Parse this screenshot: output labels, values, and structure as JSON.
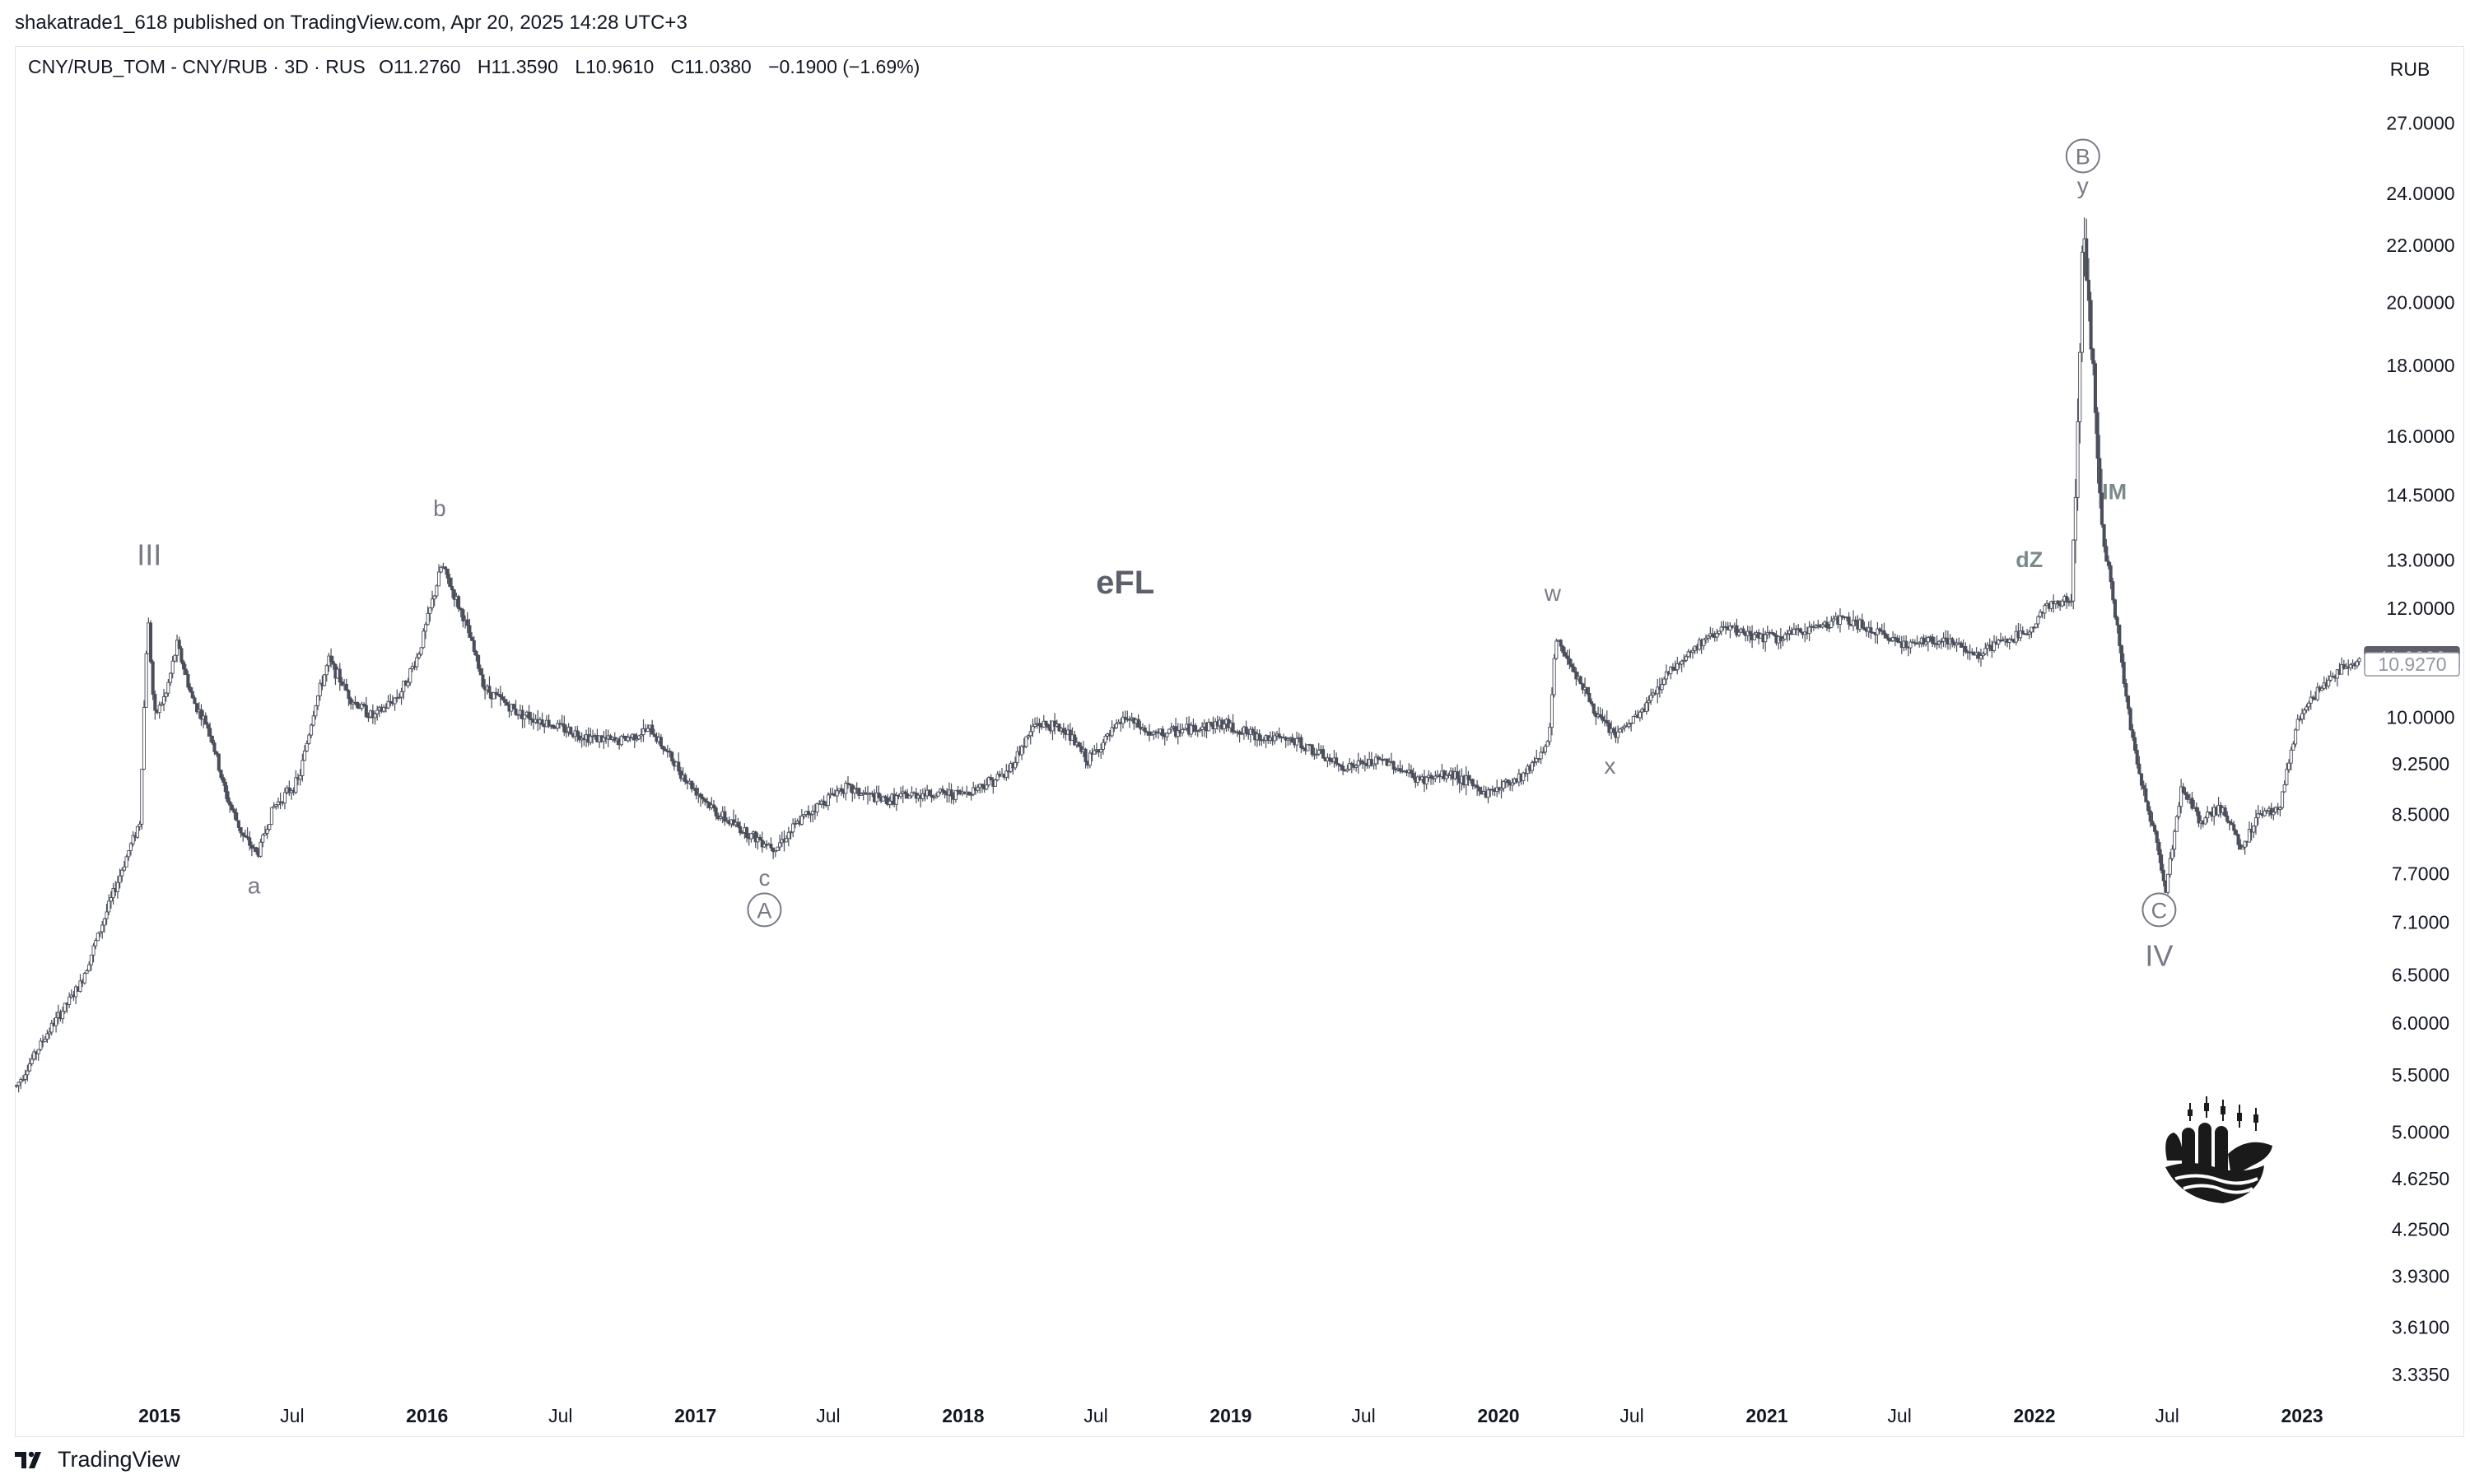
{
  "publish_line": "shakatrade1_618 published on TradingView.com, Apr 20, 2025 14:28 UTC+3",
  "legend": {
    "symbol": "CNY/RUB_TOM - CNY/RUB · 3D · RUS",
    "open": "O11.2760",
    "high": "H11.3590",
    "low": "L10.9610",
    "close": "C11.0380",
    "change": "−0.1900 (−1.69%)"
  },
  "currency": "RUB",
  "footer": {
    "logo_text": "TradingView"
  },
  "icons": [
    "tradingview-logo-icon",
    "shaka-hand-logo-icon"
  ],
  "colors": {
    "candle": "#4a4e5a",
    "label": "#787b86",
    "price_badge_bg": "#5d606b"
  },
  "chart_data": {
    "type": "line",
    "y_scale": "log",
    "ylim": [
      3.2,
      28.5
    ],
    "xlim": [
      "2014-06-20",
      "2023-03-25"
    ],
    "y_ticks": [
      "27.0000",
      "24.0000",
      "22.0000",
      "20.0000",
      "18.0000",
      "16.0000",
      "14.5000",
      "13.0000",
      "12.0000",
      "11.0380",
      "10.9270",
      "10.0000",
      "9.2500",
      "8.5000",
      "7.7000",
      "7.1000",
      "6.5000",
      "6.0000",
      "5.5000",
      "5.0000",
      "4.6250",
      "4.2500",
      "3.9300",
      "3.6100",
      "3.3350"
    ],
    "y_tick_values": [
      27,
      24,
      22,
      20,
      18,
      16,
      14.5,
      13,
      12,
      11.038,
      10.927,
      10,
      9.25,
      8.5,
      7.7,
      7.1,
      6.5,
      6,
      5.5,
      5,
      4.625,
      4.25,
      3.93,
      3.61,
      3.335
    ],
    "price_badges": [
      {
        "label": "11.0380",
        "value": 11.038,
        "style": "filled"
      },
      {
        "label": "10.9270",
        "value": 10.927,
        "style": "outline"
      }
    ],
    "x_ticks": [
      {
        "label": "2015",
        "date": "2015-01-01",
        "bold": true
      },
      {
        "label": "Jul",
        "date": "2015-07-01",
        "bold": false
      },
      {
        "label": "2016",
        "date": "2016-01-01",
        "bold": true
      },
      {
        "label": "Jul",
        "date": "2016-07-01",
        "bold": false
      },
      {
        "label": "2017",
        "date": "2017-01-01",
        "bold": true
      },
      {
        "label": "Jul",
        "date": "2017-07-01",
        "bold": false
      },
      {
        "label": "2018",
        "date": "2018-01-01",
        "bold": true
      },
      {
        "label": "Jul",
        "date": "2018-07-01",
        "bold": false
      },
      {
        "label": "2019",
        "date": "2019-01-01",
        "bold": true
      },
      {
        "label": "Jul",
        "date": "2019-07-01",
        "bold": false
      },
      {
        "label": "2020",
        "date": "2020-01-01",
        "bold": true
      },
      {
        "label": "Jul",
        "date": "2020-07-01",
        "bold": false
      },
      {
        "label": "2021",
        "date": "2021-01-01",
        "bold": true
      },
      {
        "label": "Jul",
        "date": "2021-07-01",
        "bold": false
      },
      {
        "label": "2022",
        "date": "2022-01-01",
        "bold": true
      },
      {
        "label": "Jul",
        "date": "2022-07-01",
        "bold": false
      },
      {
        "label": "2023",
        "date": "2023-01-01",
        "bold": true
      }
    ],
    "series": [
      {
        "values": [
          [
            "2014-06-20",
            5.4
          ],
          [
            "2014-08-01",
            5.9
          ],
          [
            "2014-09-15",
            6.4
          ],
          [
            "2014-10-20",
            7.2
          ],
          [
            "2014-11-20",
            8.0
          ],
          [
            "2014-12-05",
            8.4
          ],
          [
            "2014-12-16",
            11.9
          ],
          [
            "2014-12-25",
            10.0
          ],
          [
            "2015-01-10",
            10.4
          ],
          [
            "2015-01-25",
            11.3
          ],
          [
            "2015-02-15",
            10.3
          ],
          [
            "2015-03-10",
            9.8
          ],
          [
            "2015-04-01",
            8.8
          ],
          [
            "2015-04-25",
            8.2
          ],
          [
            "2015-05-15",
            7.95
          ],
          [
            "2015-06-05",
            8.6
          ],
          [
            "2015-07-10",
            9.0
          ],
          [
            "2015-08-01",
            10.2
          ],
          [
            "2015-08-20",
            11.0
          ],
          [
            "2015-09-20",
            10.3
          ],
          [
            "2015-10-20",
            10.0
          ],
          [
            "2015-11-25",
            10.4
          ],
          [
            "2015-12-20",
            11.1
          ],
          [
            "2016-01-21",
            12.9
          ],
          [
            "2016-02-20",
            11.8
          ],
          [
            "2016-03-20",
            10.5
          ],
          [
            "2016-05-01",
            10.1
          ],
          [
            "2016-06-15",
            9.9
          ],
          [
            "2016-08-01",
            9.7
          ],
          [
            "2016-09-15",
            9.6
          ],
          [
            "2016-11-01",
            9.8
          ],
          [
            "2016-12-20",
            9.0
          ],
          [
            "2017-02-01",
            8.5
          ],
          [
            "2017-03-20",
            8.2
          ],
          [
            "2017-04-20",
            8.05
          ],
          [
            "2017-06-01",
            8.5
          ],
          [
            "2017-07-20",
            8.9
          ],
          [
            "2017-09-15",
            8.7
          ],
          [
            "2017-11-01",
            8.8
          ],
          [
            "2018-01-01",
            8.8
          ],
          [
            "2018-03-01",
            9.1
          ],
          [
            "2018-04-10",
            9.9
          ],
          [
            "2018-05-20",
            9.8
          ],
          [
            "2018-06-20",
            9.3
          ],
          [
            "2018-08-10",
            10.0
          ],
          [
            "2018-09-15",
            9.7
          ],
          [
            "2018-11-01",
            9.8
          ],
          [
            "2018-12-20",
            9.9
          ],
          [
            "2019-02-01",
            9.7
          ],
          [
            "2019-04-01",
            9.6
          ],
          [
            "2019-06-01",
            9.2
          ],
          [
            "2019-08-01",
            9.3
          ],
          [
            "2019-09-15",
            9.0
          ],
          [
            "2019-11-01",
            9.1
          ],
          [
            "2019-12-15",
            8.8
          ],
          [
            "2020-02-05",
            9.1
          ],
          [
            "2020-03-10",
            9.6
          ],
          [
            "2020-03-19",
            11.4
          ],
          [
            "2020-04-15",
            10.8
          ],
          [
            "2020-05-15",
            10.0
          ],
          [
            "2020-06-10",
            9.7
          ],
          [
            "2020-07-15",
            10.1
          ],
          [
            "2020-08-20",
            10.8
          ],
          [
            "2020-10-01",
            11.3
          ],
          [
            "2020-11-01",
            11.6
          ],
          [
            "2020-12-01",
            11.5
          ],
          [
            "2021-01-15",
            11.4
          ],
          [
            "2021-03-01",
            11.6
          ],
          [
            "2021-04-15",
            11.8
          ],
          [
            "2021-06-01",
            11.5
          ],
          [
            "2021-07-15",
            11.3
          ],
          [
            "2021-09-01",
            11.4
          ],
          [
            "2021-10-15",
            11.1
          ],
          [
            "2021-11-10",
            11.3
          ],
          [
            "2021-12-20",
            11.5
          ],
          [
            "2022-01-15",
            12.0
          ],
          [
            "2022-02-20",
            12.2
          ],
          [
            "2022-03-01",
            16.0
          ],
          [
            "2022-03-08",
            22.8
          ],
          [
            "2022-03-20",
            18.5
          ],
          [
            "2022-04-05",
            13.5
          ],
          [
            "2022-04-20",
            12.0
          ],
          [
            "2022-05-10",
            10.0
          ],
          [
            "2022-05-25",
            9.0
          ],
          [
            "2022-06-15",
            8.2
          ],
          [
            "2022-06-29",
            7.5
          ],
          [
            "2022-07-20",
            8.9
          ],
          [
            "2022-08-15",
            8.4
          ],
          [
            "2022-09-15",
            8.6
          ],
          [
            "2022-10-10",
            8.0
          ],
          [
            "2022-11-01",
            8.5
          ],
          [
            "2022-12-01",
            8.6
          ],
          [
            "2022-12-25",
            9.9
          ],
          [
            "2023-01-20",
            10.4
          ],
          [
            "2023-02-20",
            10.8
          ],
          [
            "2023-03-20",
            11.04
          ]
        ]
      }
    ],
    "annotations": [
      {
        "text": "III",
        "date": "2014-12-18",
        "value": 12.9,
        "size": "large"
      },
      {
        "text": "a",
        "date": "2015-05-10",
        "value": 7.45,
        "size": "small"
      },
      {
        "text": "b",
        "date": "2016-01-18",
        "value": 14.0,
        "size": "small"
      },
      {
        "text": "c",
        "date": "2017-04-05",
        "value": 7.55,
        "size": "small"
      },
      {
        "text": "A",
        "date": "2017-04-05",
        "value": 7.15,
        "size": "circled"
      },
      {
        "text": "eFL",
        "date": "2018-08-10",
        "value": 12.3,
        "size": "bold"
      },
      {
        "text": "w",
        "date": "2020-03-15",
        "value": 12.15,
        "size": "small"
      },
      {
        "text": "x",
        "date": "2020-06-01",
        "value": 9.1,
        "size": "small"
      },
      {
        "text": "dZ",
        "date": "2021-12-25",
        "value": 12.85,
        "size": "bold-small"
      },
      {
        "text": "B",
        "date": "2022-03-08",
        "value": 25.2,
        "size": "circled"
      },
      {
        "text": "y",
        "date": "2022-03-08",
        "value": 24.0,
        "size": "small"
      },
      {
        "text": "IM",
        "date": "2022-04-20",
        "value": 14.4,
        "size": "bold-small"
      },
      {
        "text": "C",
        "date": "2022-06-20",
        "value": 7.15,
        "size": "circled"
      },
      {
        "text": "IV",
        "date": "2022-06-20",
        "value": 6.6,
        "size": "large"
      }
    ]
  }
}
